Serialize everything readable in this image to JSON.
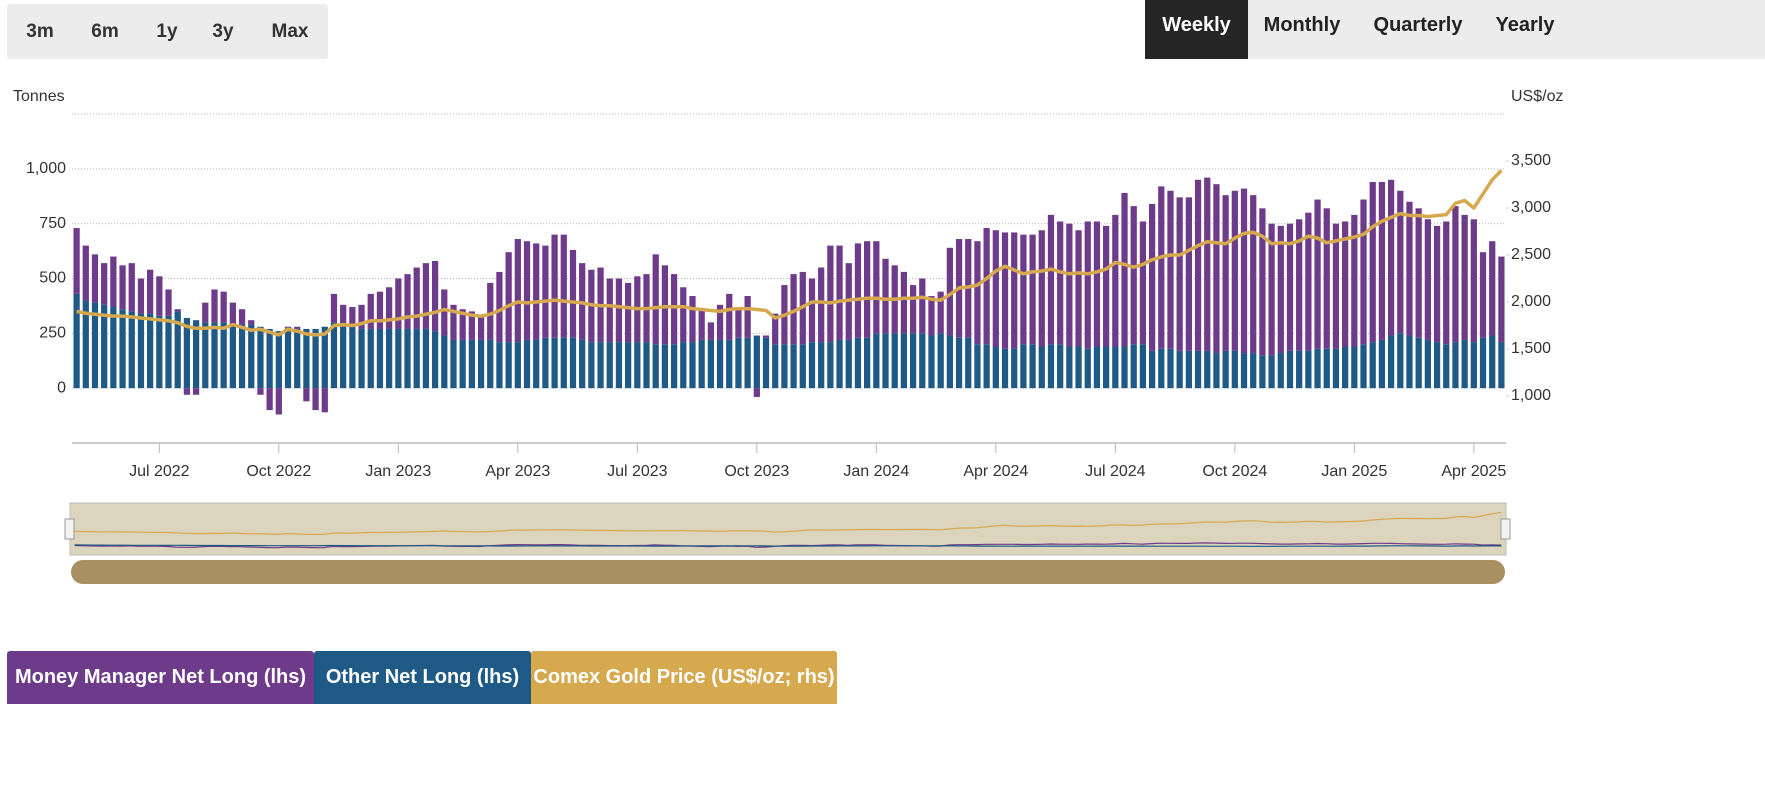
{
  "range_buttons": [
    "3m",
    "6m",
    "1y",
    "3y",
    "Max"
  ],
  "period_buttons": [
    "Weekly",
    "Monthly",
    "Quarterly",
    "Yearly"
  ],
  "chart_data": {
    "type": "bar",
    "y_label": "Tonnes",
    "y2_label": "US$/oz",
    "categories": [
      null,
      null,
      null,
      null,
      null,
      null,
      null,
      null,
      null,
      "Jul 2022",
      null,
      null,
      null,
      null,
      null,
      null,
      null,
      null,
      null,
      null,
      null,
      null,
      "Oct 2022",
      null,
      null,
      null,
      null,
      null,
      null,
      null,
      null,
      null,
      null,
      null,
      null,
      "Jan 2023",
      null,
      null,
      null,
      null,
      null,
      null,
      null,
      null,
      null,
      null,
      null,
      null,
      "Apr 2023",
      null,
      null,
      null,
      null,
      null,
      null,
      null,
      null,
      null,
      null,
      null,
      null,
      "Jul 2023",
      null,
      null,
      null,
      null,
      null,
      null,
      null,
      null,
      null,
      null,
      null,
      null,
      "Oct 2023",
      null,
      null,
      null,
      null,
      null,
      null,
      null,
      null,
      null,
      null,
      null,
      null,
      "Jan 2024",
      null,
      null,
      null,
      null,
      null,
      null,
      null,
      null,
      null,
      null,
      null,
      null,
      "Apr 2024",
      null,
      null,
      null,
      null,
      null,
      null,
      null,
      null,
      null,
      null,
      null,
      null,
      "Jul 2024",
      null,
      null,
      null,
      null,
      null,
      null,
      null,
      null,
      null,
      null,
      null,
      null,
      "Oct 2024",
      null,
      null,
      null,
      null,
      null,
      null,
      null,
      null,
      null,
      null,
      null,
      null,
      "Jan 2025",
      null,
      null,
      null,
      null,
      null,
      null,
      null,
      null,
      null,
      null,
      null,
      null,
      "Apr 2025",
      null,
      null,
      null
    ],
    "series": [
      {
        "name": "Money Manager Net Long (lhs)",
        "color": "#6e3b8a",
        "values": [
          300,
          250,
          220,
          190,
          230,
          200,
          220,
          160,
          200,
          180,
          120,
          10,
          -30,
          -30,
          90,
          150,
          140,
          100,
          70,
          20,
          -30,
          -100,
          -120,
          10,
          10,
          -60,
          -100,
          -110,
          130,
          100,
          90,
          110,
          160,
          170,
          190,
          230,
          250,
          280,
          300,
          320,
          210,
          160,
          140,
          130,
          110,
          260,
          320,
          410,
          470,
          450,
          440,
          420,
          470,
          470,
          400,
          350,
          330,
          340,
          290,
          290,
          270,
          300,
          310,
          410,
          360,
          320,
          250,
          210,
          140,
          80,
          160,
          210,
          140,
          190,
          -40,
          10,
          140,
          270,
          320,
          330,
          290,
          340,
          440,
          430,
          350,
          430,
          440,
          420,
          340,
          310,
          280,
          220,
          250,
          180,
          190,
          400,
          450,
          450,
          470,
          530,
          530,
          530,
          530,
          500,
          500,
          530,
          590,
          560,
          560,
          530,
          580,
          570,
          550,
          600,
          700,
          630,
          560,
          670,
          740,
          720,
          700,
          700,
          780,
          790,
          770,
          710,
          730,
          750,
          720,
          670,
          600,
          580,
          580,
          600,
          630,
          680,
          640,
          570,
          570,
          600,
          660,
          730,
          720,
          710,
          650,
          610,
          590,
          550,
          530,
          560,
          620,
          570,
          560,
          390,
          430,
          390
        ]
      },
      {
        "name": "Other Net Long (lhs)",
        "color": "#1f5a87",
        "values": [
          430,
          400,
          390,
          380,
          370,
          360,
          350,
          340,
          340,
          330,
          330,
          350,
          320,
          310,
          300,
          300,
          300,
          290,
          290,
          290,
          280,
          270,
          260,
          270,
          270,
          270,
          270,
          280,
          300,
          280,
          280,
          270,
          270,
          270,
          270,
          270,
          270,
          270,
          270,
          260,
          240,
          220,
          220,
          220,
          220,
          220,
          210,
          210,
          210,
          220,
          220,
          230,
          230,
          230,
          230,
          220,
          210,
          210,
          210,
          210,
          210,
          210,
          210,
          200,
          200,
          200,
          210,
          210,
          220,
          220,
          220,
          220,
          230,
          230,
          240,
          230,
          200,
          200,
          200,
          200,
          210,
          210,
          210,
          220,
          220,
          230,
          230,
          250,
          250,
          250,
          250,
          250,
          250,
          240,
          250,
          240,
          230,
          230,
          200,
          200,
          190,
          180,
          180,
          200,
          200,
          190,
          200,
          200,
          190,
          190,
          180,
          190,
          190,
          190,
          190,
          200,
          200,
          170,
          180,
          180,
          170,
          170,
          170,
          170,
          160,
          170,
          170,
          160,
          160,
          150,
          150,
          160,
          170,
          170,
          170,
          180,
          180,
          180,
          190,
          190,
          200,
          210,
          220,
          240,
          250,
          240,
          230,
          220,
          210,
          200,
          210,
          220,
          210,
          230,
          240,
          210
        ]
      },
      {
        "name": "Comex Gold Price (US$/oz; rhs)",
        "color": "#d6a94e",
        "axis": "y2",
        "values": [
          1900,
          1880,
          1870,
          1860,
          1850,
          1850,
          1840,
          1830,
          1820,
          1810,
          1800,
          1780,
          1740,
          1720,
          1720,
          1730,
          1720,
          1760,
          1730,
          1700,
          1710,
          1680,
          1650,
          1710,
          1690,
          1660,
          1650,
          1660,
          1750,
          1760,
          1750,
          1770,
          1800,
          1800,
          1810,
          1820,
          1840,
          1850,
          1870,
          1890,
          1920,
          1900,
          1880,
          1860,
          1850,
          1870,
          1910,
          1960,
          2000,
          1990,
          2000,
          2010,
          2020,
          2010,
          2000,
          1990,
          1970,
          1960,
          1960,
          1950,
          1940,
          1930,
          1930,
          1940,
          1950,
          1950,
          1950,
          1930,
          1920,
          1910,
          1900,
          1920,
          1930,
          1930,
          1920,
          1910,
          1830,
          1860,
          1900,
          1950,
          2000,
          2000,
          1990,
          2010,
          2020,
          2030,
          2040,
          2040,
          2030,
          2030,
          2040,
          2040,
          2050,
          2030,
          2020,
          2080,
          2150,
          2160,
          2180,
          2250,
          2330,
          2380,
          2340,
          2300,
          2320,
          2330,
          2350,
          2320,
          2300,
          2310,
          2300,
          2320,
          2350,
          2420,
          2400,
          2370,
          2400,
          2450,
          2480,
          2500,
          2500,
          2550,
          2600,
          2640,
          2630,
          2620,
          2680,
          2730,
          2740,
          2700,
          2620,
          2630,
          2620,
          2650,
          2700,
          2680,
          2630,
          2650,
          2670,
          2690,
          2720,
          2800,
          2860,
          2900,
          2940,
          2920,
          2920,
          2910,
          2920,
          2930,
          3050,
          3080,
          3000,
          3150,
          3300,
          3400
        ]
      }
    ],
    "ylim": [
      -250,
      1250
    ],
    "yticks": [
      0,
      250,
      500,
      750,
      {
        "value": 1000,
        "label": "1,000"
      }
    ],
    "y2lim": [
      500,
      4000
    ],
    "y2ticks": [
      {
        "value": 1000,
        "label": "1,000"
      },
      {
        "value": 1500,
        "label": "1,500"
      },
      {
        "value": 2000,
        "label": "2,000"
      },
      {
        "value": 2500,
        "label": "2,500"
      },
      {
        "value": 3000,
        "label": "3,000"
      },
      {
        "value": 3500,
        "label": "3,500"
      }
    ],
    "grid": true,
    "stacked": true,
    "active_period": 0
  }
}
